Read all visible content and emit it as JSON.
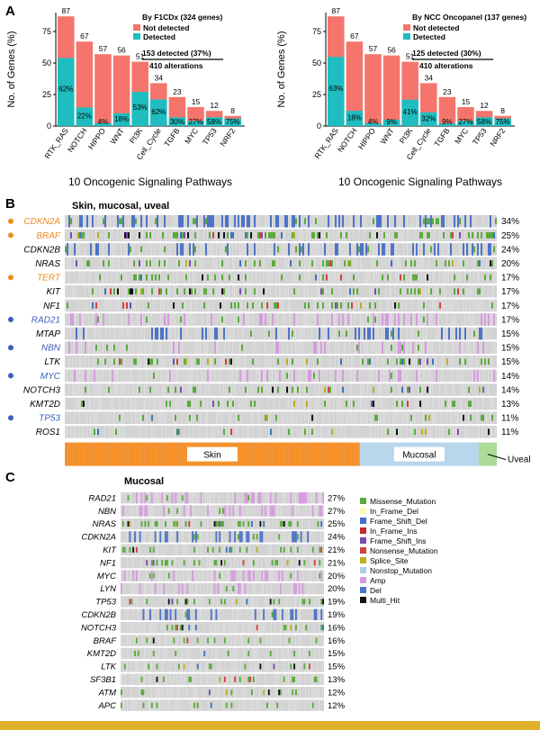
{
  "panel_letters": {
    "a": "A",
    "b": "B",
    "c": "C"
  },
  "colors": {
    "not_detected": "#f5756c",
    "detected": "#1fbdc0",
    "missense": "#5aab3a",
    "in_frame_del": "#fefcb2",
    "frame_shift_del": "#3f72c1",
    "in_frame_ins": "#c12a2a",
    "frame_shift_ins": "#7b4ab4",
    "nonsense": "#d2413c",
    "splice_site": "#b7b11d",
    "nonstop": "#a7cfe8",
    "amp": "#d79be0",
    "del": "#4e74c8",
    "multi_hit": "#111111",
    "skin": "#f28a1e",
    "mucosal": "#b3d3ea",
    "uveal": "#a6d890",
    "gene_orange": "#f28a1e",
    "gene_blue": "#3b5fb8",
    "bg_cell": "#d3d3d3"
  },
  "chart_data": [
    {
      "type": "bar",
      "legend_title": "By F1CDx (324 genes)",
      "legend_items": [
        "Not detected",
        "Detected"
      ],
      "detected_line": "153 detected (37%)",
      "alterations_line": "410 alterations",
      "xlabel": "10 Oncogenic Signaling Pathways",
      "ylabel": "No. of Genes (%)",
      "ylim": [
        0,
        90
      ],
      "yticks": [
        0,
        25,
        50,
        75
      ],
      "categories": [
        "RTK_RAS",
        "NOTCH",
        "HIPPO",
        "WNT",
        "PI3K",
        "Cell_Cycle",
        "TGFB",
        "MYC",
        "TP53",
        "NRF2"
      ],
      "totals": [
        87,
        67,
        57,
        56,
        51,
        34,
        23,
        15,
        12,
        8
      ],
      "detected_pct_labels": [
        "62%",
        "22%",
        "4%",
        "18%",
        "53%",
        "62%",
        "30%",
        "27%",
        "58%",
        "75%"
      ],
      "detected_fraction": [
        0.62,
        0.22,
        0.04,
        0.18,
        0.53,
        0.62,
        0.3,
        0.27,
        0.58,
        0.75
      ]
    },
    {
      "type": "bar",
      "legend_title": "By NCC Oncopanel (137 genes)",
      "legend_items": [
        "Not detected",
        "Detected"
      ],
      "detected_line": "125 detected (30%)",
      "alterations_line": "410 alterations",
      "xlabel": "10 Oncogenic Signaling Pathways",
      "ylabel": "No. of Genes (%)",
      "ylim": [
        0,
        90
      ],
      "yticks": [
        0,
        25,
        50,
        75
      ],
      "categories": [
        "RTK_RAS",
        "NOTCH",
        "HIPPO",
        "WNT",
        "PI3K",
        "Cell_Cycle",
        "TGFB",
        "MYC",
        "TP53",
        "NRF2"
      ],
      "totals": [
        87,
        67,
        57,
        56,
        51,
        34,
        23,
        15,
        12,
        8
      ],
      "detected_pct_labels": [
        "63%",
        "18%",
        "4%",
        "9%",
        "41%",
        "32%",
        "9%",
        "27%",
        "58%",
        "75%"
      ],
      "detected_fraction": [
        0.63,
        0.18,
        0.04,
        0.09,
        0.41,
        0.32,
        0.09,
        0.27,
        0.58,
        0.75
      ]
    }
  ],
  "oncoprint_b": {
    "title": "Skin, mucosal, uveal",
    "genes": [
      {
        "name": "CDKN2A",
        "pct": "34%",
        "mark": "orange"
      },
      {
        "name": "BRAF",
        "pct": "25%",
        "mark": "orange"
      },
      {
        "name": "CDKN2B",
        "pct": "24%",
        "mark": ""
      },
      {
        "name": "NRAS",
        "pct": "20%",
        "mark": ""
      },
      {
        "name": "TERT",
        "pct": "17%",
        "mark": "orange"
      },
      {
        "name": "KIT",
        "pct": "17%",
        "mark": ""
      },
      {
        "name": "NF1",
        "pct": "17%",
        "mark": ""
      },
      {
        "name": "RAD21",
        "pct": "17%",
        "mark": "blue"
      },
      {
        "name": "MTAP",
        "pct": "15%",
        "mark": ""
      },
      {
        "name": "NBN",
        "pct": "15%",
        "mark": "blue"
      },
      {
        "name": "LTK",
        "pct": "15%",
        "mark": ""
      },
      {
        "name": "MYC",
        "pct": "14%",
        "mark": "blue"
      },
      {
        "name": "NOTCH3",
        "pct": "14%",
        "mark": ""
      },
      {
        "name": "KMT2D",
        "pct": "13%",
        "mark": ""
      },
      {
        "name": "TP53",
        "pct": "11%",
        "mark": "blue"
      },
      {
        "name": "ROS1",
        "pct": "11%",
        "mark": ""
      }
    ],
    "groups": [
      {
        "name": "Skin",
        "fraction": 0.683
      },
      {
        "name": "Mucosal",
        "fraction": 0.275
      },
      {
        "name": "Uveal",
        "fraction": 0.042
      }
    ]
  },
  "oncoprint_c": {
    "title": "Mucosal",
    "genes": [
      {
        "name": "RAD21",
        "pct": "27%"
      },
      {
        "name": "NBN",
        "pct": "27%"
      },
      {
        "name": "NRAS",
        "pct": "25%"
      },
      {
        "name": "CDKN2A",
        "pct": "24%"
      },
      {
        "name": "KIT",
        "pct": "21%"
      },
      {
        "name": "NF1",
        "pct": "21%"
      },
      {
        "name": "MYC",
        "pct": "20%"
      },
      {
        "name": "LYN",
        "pct": "20%"
      },
      {
        "name": "TP53",
        "pct": "19%"
      },
      {
        "name": "CDKN2B",
        "pct": "19%"
      },
      {
        "name": "NOTCH3",
        "pct": "16%"
      },
      {
        "name": "BRAF",
        "pct": "16%"
      },
      {
        "name": "KMT2D",
        "pct": "15%"
      },
      {
        "name": "LTK",
        "pct": "15%"
      },
      {
        "name": "SF3B1",
        "pct": "13%"
      },
      {
        "name": "ATM",
        "pct": "12%"
      },
      {
        "name": "APC",
        "pct": "12%"
      }
    ],
    "legend": [
      "Missense_Mutation",
      "In_Frame_Del",
      "Frame_Shift_Del",
      "In_Frame_Ins",
      "Frame_Shift_Ins",
      "Nonsense_Mutation",
      "Splice_Site",
      "Nonstop_Mutation",
      "Amp",
      "Del",
      "Multi_Hit"
    ]
  }
}
